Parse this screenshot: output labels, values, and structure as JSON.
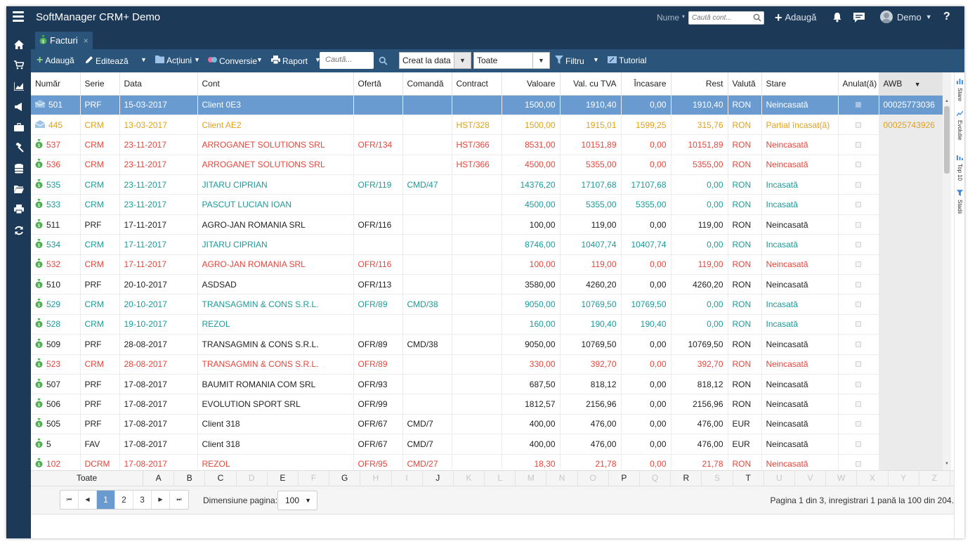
{
  "app": {
    "title": "SoftManager CRM+ Demo"
  },
  "topbar": {
    "name_label": "Nume",
    "account_search_placeholder": "Caută cont...",
    "add_label": "Adaugă",
    "user_name": "Demo",
    "help": "?"
  },
  "tab": {
    "label": "Facturi",
    "close": "×"
  },
  "toolbar": {
    "add": "Adaugă",
    "edit": "Editează",
    "actions": "Acțiuni",
    "conversions": "Conversie",
    "report": "Raport",
    "search_placeholder": "Caută...",
    "date_filter": "Creat la data",
    "status_filter": "Toate",
    "filter": "Filtru",
    "tutorial": "Tutorial"
  },
  "columns": {
    "number": "Număr",
    "series": "Serie",
    "date": "Data",
    "account": "Cont",
    "offer": "Ofertă",
    "order": "Comandă",
    "contract": "Contract",
    "value": "Valoare",
    "value_vat": "Val. cu TVA",
    "collected": "Încasare",
    "remaining": "Rest",
    "currency": "Valută",
    "status": "Stare",
    "cancelled": "Anulat(ă)",
    "awb": "AWB"
  },
  "colors": {
    "header_bg": "#1c3a57",
    "toolbar_bg": "#2a5479",
    "selected_row": "#6a9bd0",
    "green": "#1b9a9a",
    "red": "#e8443a",
    "orange": "#e0a11b"
  },
  "rows": [
    {
      "icon": "envelope-icon",
      "tone": "selected",
      "number": "501",
      "series": "PRF",
      "date": "15-03-2017",
      "account": "Client 0E3",
      "offer": "",
      "order": "",
      "contract": "",
      "value": "1500,00",
      "value_vat": "1910,40",
      "collected": "0,00",
      "remaining": "1910,40",
      "currency": "RON",
      "status": "Neincasată",
      "awb": "00025773036"
    },
    {
      "icon": "envelope-icon",
      "tone": "orange",
      "number": "445",
      "series": "CRM",
      "date": "13-03-2017",
      "account": "Client AE2",
      "offer": "",
      "order": "",
      "contract": "HST/328",
      "value": "1500,00",
      "value_vat": "1915,01",
      "collected": "1599,25",
      "remaining": "315,76",
      "currency": "RON",
      "status": "Partial încasat(ă)",
      "awb": "00025743926"
    },
    {
      "icon": "money-bag-icon",
      "tone": "red",
      "number": "537",
      "series": "CRM",
      "date": "23-11-2017",
      "account": "ARROGANET SOLUTIONS SRL",
      "offer": "OFR/134",
      "order": "",
      "contract": "HST/366",
      "value": "8531,00",
      "value_vat": "10151,89",
      "collected": "0,00",
      "remaining": "10151,89",
      "currency": "RON",
      "status": "Neincasată",
      "awb": ""
    },
    {
      "icon": "money-bag-icon",
      "tone": "red",
      "number": "536",
      "series": "CRM",
      "date": "23-11-2017",
      "account": "ARROGANET SOLUTIONS SRL",
      "offer": "",
      "order": "",
      "contract": "HST/366",
      "value": "4500,00",
      "value_vat": "5355,00",
      "collected": "0,00",
      "remaining": "5355,00",
      "currency": "RON",
      "status": "Neincasată",
      "awb": ""
    },
    {
      "icon": "money-bag-icon",
      "tone": "green",
      "number": "535",
      "series": "CRM",
      "date": "23-11-2017",
      "account": "JITARU CIPRIAN",
      "offer": "OFR/119",
      "order": "CMD/47",
      "contract": "",
      "value": "14376,20",
      "value_vat": "17107,68",
      "collected": "17107,68",
      "remaining": "0,00",
      "currency": "RON",
      "status": "Incasată",
      "awb": ""
    },
    {
      "icon": "money-bag-icon",
      "tone": "green",
      "number": "533",
      "series": "CRM",
      "date": "23-11-2017",
      "account": "PASCUT LUCIAN IOAN",
      "offer": "",
      "order": "",
      "contract": "",
      "value": "4500,00",
      "value_vat": "5355,00",
      "collected": "5355,00",
      "remaining": "0,00",
      "currency": "RON",
      "status": "Incasată",
      "awb": ""
    },
    {
      "icon": "money-bag-icon",
      "tone": "black",
      "number": "511",
      "series": "PRF",
      "date": "17-11-2017",
      "account": "AGRO-JAN ROMANIA SRL",
      "offer": "OFR/116",
      "order": "",
      "contract": "",
      "value": "100,00",
      "value_vat": "119,00",
      "collected": "0,00",
      "remaining": "119,00",
      "currency": "RON",
      "status": "Neincasată",
      "awb": ""
    },
    {
      "icon": "money-bag-icon",
      "tone": "green",
      "number": "534",
      "series": "CRM",
      "date": "17-11-2017",
      "account": "JITARU CIPRIAN",
      "offer": "",
      "order": "",
      "contract": "",
      "value": "8746,00",
      "value_vat": "10407,74",
      "collected": "10407,74",
      "remaining": "0,00",
      "currency": "RON",
      "status": "Incasată",
      "awb": ""
    },
    {
      "icon": "money-bag-icon",
      "tone": "red",
      "number": "532",
      "series": "CRM",
      "date": "17-11-2017",
      "account": "AGRO-JAN ROMANIA SRL",
      "offer": "OFR/116",
      "order": "",
      "contract": "",
      "value": "100,00",
      "value_vat": "119,00",
      "collected": "0,00",
      "remaining": "119,00",
      "currency": "RON",
      "status": "Neincasată",
      "awb": ""
    },
    {
      "icon": "money-bag-icon",
      "tone": "black",
      "number": "510",
      "series": "PRF",
      "date": "20-10-2017",
      "account": "ASDSAD",
      "offer": "OFR/113",
      "order": "",
      "contract": "",
      "value": "3580,00",
      "value_vat": "4260,20",
      "collected": "0,00",
      "remaining": "4260,20",
      "currency": "RON",
      "status": "Neincasată",
      "awb": ""
    },
    {
      "icon": "money-bag-icon",
      "tone": "green",
      "number": "529",
      "series": "CRM",
      "date": "20-10-2017",
      "account": "TRANSAGMIN & CONS S.R.L.",
      "offer": "OFR/89",
      "order": "CMD/38",
      "contract": "",
      "value": "9050,00",
      "value_vat": "10769,50",
      "collected": "10769,50",
      "remaining": "0,00",
      "currency": "RON",
      "status": "Incasată",
      "awb": ""
    },
    {
      "icon": "money-bag-icon",
      "tone": "green",
      "number": "528",
      "series": "CRM",
      "date": "19-10-2017",
      "account": "REZOL",
      "offer": "",
      "order": "",
      "contract": "",
      "value": "160,00",
      "value_vat": "190,40",
      "collected": "190,40",
      "remaining": "0,00",
      "currency": "RON",
      "status": "Incasată",
      "awb": ""
    },
    {
      "icon": "money-bag-icon",
      "tone": "black",
      "number": "509",
      "series": "PRF",
      "date": "28-08-2017",
      "account": "TRANSAGMIN & CONS S.R.L.",
      "offer": "OFR/89",
      "order": "CMD/38",
      "contract": "",
      "value": "9050,00",
      "value_vat": "10769,50",
      "collected": "0,00",
      "remaining": "10769,50",
      "currency": "RON",
      "status": "Neincasată",
      "awb": ""
    },
    {
      "icon": "money-bag-icon",
      "tone": "red",
      "number": "523",
      "series": "CRM",
      "date": "28-08-2017",
      "account": "TRANSAGMIN & CONS S.R.L.",
      "offer": "OFR/89",
      "order": "",
      "contract": "",
      "value": "330,00",
      "value_vat": "392,70",
      "collected": "0,00",
      "remaining": "392,70",
      "currency": "RON",
      "status": "Neincasată",
      "awb": ""
    },
    {
      "icon": "money-bag-icon",
      "tone": "black",
      "number": "507",
      "series": "PRF",
      "date": "17-08-2017",
      "account": "BAUMIT ROMANIA COM SRL",
      "offer": "OFR/93",
      "order": "",
      "contract": "",
      "value": "687,50",
      "value_vat": "818,12",
      "collected": "0,00",
      "remaining": "818,12",
      "currency": "RON",
      "status": "Neincasată",
      "awb": ""
    },
    {
      "icon": "money-bag-icon",
      "tone": "black",
      "number": "506",
      "series": "PRF",
      "date": "17-08-2017",
      "account": "EVOLUTION SPORT SRL",
      "offer": "OFR/99",
      "order": "",
      "contract": "",
      "value": "1812,57",
      "value_vat": "2156,96",
      "collected": "0,00",
      "remaining": "2156,96",
      "currency": "RON",
      "status": "Neincasată",
      "awb": ""
    },
    {
      "icon": "money-bag-icon",
      "tone": "black",
      "number": "505",
      "series": "PRF",
      "date": "17-08-2017",
      "account": "Client 318",
      "offer": "OFR/67",
      "order": "CMD/7",
      "contract": "",
      "value": "400,00",
      "value_vat": "476,00",
      "collected": "0,00",
      "remaining": "476,00",
      "currency": "EUR",
      "status": "Neincasată",
      "awb": ""
    },
    {
      "icon": "money-bag-icon",
      "tone": "black",
      "number": "5",
      "series": "FAV",
      "date": "17-08-2017",
      "account": "Client 318",
      "offer": "OFR/67",
      "order": "CMD/7",
      "contract": "",
      "value": "400,00",
      "value_vat": "476,00",
      "collected": "0,00",
      "remaining": "476,00",
      "currency": "EUR",
      "status": "Neincasată",
      "awb": ""
    },
    {
      "icon": "money-bag-icon",
      "tone": "red",
      "number": "102",
      "series": "DCRM",
      "date": "17-08-2017",
      "account": "REZOL",
      "offer": "OFR/95",
      "order": "CMD/27",
      "contract": "",
      "value": "18,30",
      "value_vat": "21,78",
      "collected": "0,00",
      "remaining": "21,78",
      "currency": "RON",
      "status": "Neincasată",
      "awb": ""
    }
  ],
  "alphabet": {
    "all": "Toate",
    "letters": [
      {
        "l": "A",
        "on": true
      },
      {
        "l": "B",
        "on": true
      },
      {
        "l": "C",
        "on": true
      },
      {
        "l": "D",
        "on": false
      },
      {
        "l": "E",
        "on": true
      },
      {
        "l": "F",
        "on": false
      },
      {
        "l": "G",
        "on": true
      },
      {
        "l": "H",
        "on": false
      },
      {
        "l": "I",
        "on": false
      },
      {
        "l": "J",
        "on": true
      },
      {
        "l": "K",
        "on": false
      },
      {
        "l": "L",
        "on": false
      },
      {
        "l": "M",
        "on": false
      },
      {
        "l": "N",
        "on": false
      },
      {
        "l": "O",
        "on": false
      },
      {
        "l": "P",
        "on": true
      },
      {
        "l": "Q",
        "on": false
      },
      {
        "l": "R",
        "on": true
      },
      {
        "l": "S",
        "on": false
      },
      {
        "l": "T",
        "on": true
      },
      {
        "l": "U",
        "on": false
      },
      {
        "l": "V",
        "on": false
      },
      {
        "l": "W",
        "on": false
      },
      {
        "l": "X",
        "on": false
      },
      {
        "l": "Y",
        "on": false
      },
      {
        "l": "Z",
        "on": false
      }
    ]
  },
  "pagination": {
    "first": "⏮",
    "prev": "◀",
    "pages": [
      "1",
      "2",
      "3"
    ],
    "current_page": "1",
    "next": "▶",
    "last": "⏭",
    "page_size_label": "Dimensiune pagina:",
    "page_size": "100",
    "info": "Pagina 1 din 3, inregistrari 1 pană la 100 din 204."
  },
  "right_panel": [
    "Stare",
    "Evolutie",
    "Top 10",
    "Stadii"
  ]
}
